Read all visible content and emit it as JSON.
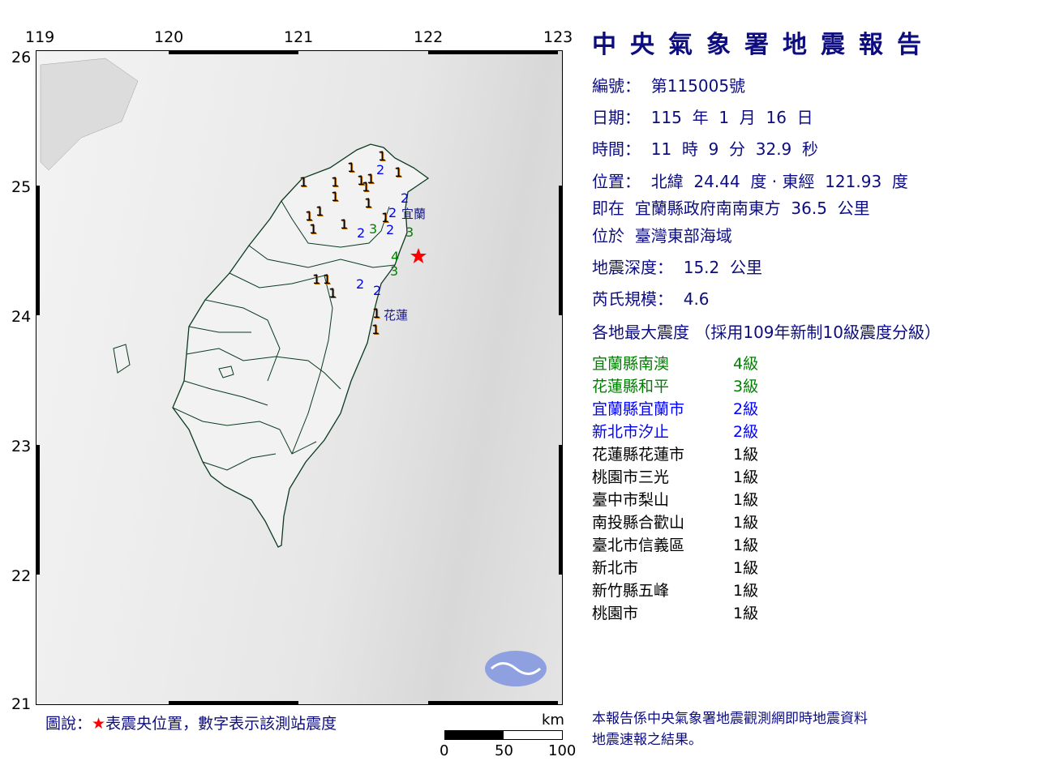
{
  "map": {
    "lon_ticks": [
      "119",
      "120",
      "121",
      "122",
      "123"
    ],
    "lat_ticks": [
      "26",
      "25",
      "24",
      "23",
      "22",
      "21"
    ],
    "intensity_marks": [
      "1",
      "1",
      "1",
      "1",
      "1",
      "1",
      "1",
      "1",
      "1",
      "1",
      "1",
      "1",
      "1",
      "1",
      "1",
      "1",
      "1",
      "1",
      "1",
      "1",
      "2",
      "2",
      "2",
      "2",
      "2",
      "2",
      "2",
      "3",
      "3",
      "3",
      "4"
    ],
    "city_labels": [
      "宜蘭",
      "花蓮"
    ],
    "epicenter_color": "#ff0000",
    "icons": [
      "epicenter-star-icon",
      "cwa-emblem-icon"
    ]
  },
  "report": {
    "title": "中央氣象署地震報告",
    "number_line": "編號：  第115005號",
    "date_line": "日期：  115  年  1  月  16  日",
    "time_line": "時間：  11  時  9  分  32.9  秒",
    "position_line": "位置：  北緯  24.44  度 · 東經  121.93  度",
    "relative_line": "即在  宜蘭縣政府南南東方  36.5  公里",
    "region_line": "位於  臺灣東部海域",
    "depth_line": "地震深度：  15.2  公里",
    "magnitude_line": "芮氏規模：  4.6",
    "intensity_header": "各地最大震度 （採用109年新制10級震度分級）",
    "stations": [
      {
        "name": "宜蘭縣南澳",
        "level": "4級",
        "color": "#008000"
      },
      {
        "name": "花蓮縣和平",
        "level": "3級",
        "color": "#008000"
      },
      {
        "name": "宜蘭縣宜蘭市",
        "level": "2級",
        "color": "#0000ff"
      },
      {
        "name": "新北市汐止",
        "level": "2級",
        "color": "#0000ff"
      },
      {
        "name": "花蓮縣花蓮市",
        "level": "1級",
        "color": "#000000"
      },
      {
        "name": "桃園市三光",
        "level": "1級",
        "color": "#000000"
      },
      {
        "name": "臺中市梨山",
        "level": "1級",
        "color": "#000000"
      },
      {
        "name": "南投縣合歡山",
        "level": "1級",
        "color": "#000000"
      },
      {
        "name": "臺北市信義區",
        "level": "1級",
        "color": "#000000"
      },
      {
        "name": "新北市",
        "level": "1級",
        "color": "#000000"
      },
      {
        "name": "新竹縣五峰",
        "level": "1級",
        "color": "#000000"
      },
      {
        "name": "桃園市",
        "level": "1級",
        "color": "#000000"
      }
    ],
    "note_line1": "本報告係中央氣象署地震觀測網即時地震資料",
    "note_line2": "地震速報之結果。"
  },
  "legend": {
    "prefix": "圖說：",
    "star": "★",
    "text": "表震央位置，數字表示該測站震度"
  },
  "scale_bar": {
    "unit": "km",
    "labels": [
      "0",
      "50",
      "100"
    ]
  }
}
